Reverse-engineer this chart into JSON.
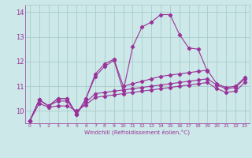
{
  "background_color": "#cce8e8",
  "grid_color": "#aacccc",
  "line_color": "#993399",
  "xlabel": "Windchill (Refroidissement éolien,°C)",
  "ylim": [
    9.5,
    14.3
  ],
  "xlim": [
    -0.5,
    23.5
  ],
  "yticks": [
    10,
    11,
    12,
    13,
    14
  ],
  "xticks": [
    0,
    1,
    2,
    3,
    4,
    5,
    6,
    7,
    8,
    9,
    10,
    11,
    12,
    13,
    14,
    15,
    16,
    17,
    18,
    19,
    20,
    21,
    22,
    23
  ],
  "series1": [
    9.6,
    10.45,
    10.2,
    10.5,
    10.5,
    9.85,
    10.5,
    11.4,
    11.8,
    12.05,
    10.8,
    12.6,
    13.4,
    13.6,
    13.9,
    13.9,
    13.1,
    12.55,
    12.5,
    11.6,
    null,
    null,
    null,
    null
  ],
  "series2": [
    9.6,
    10.45,
    10.2,
    10.5,
    10.5,
    9.85,
    10.5,
    11.5,
    11.9,
    12.1,
    11.0,
    11.1,
    11.2,
    11.3,
    11.4,
    11.45,
    11.5,
    11.55,
    11.6,
    11.65,
    11.1,
    10.95,
    11.0,
    11.35
  ],
  "series3": [
    9.6,
    10.45,
    10.2,
    10.4,
    10.4,
    9.9,
    10.35,
    10.7,
    10.75,
    10.8,
    10.85,
    10.9,
    10.95,
    11.0,
    11.05,
    11.1,
    11.15,
    11.2,
    11.25,
    11.3,
    11.05,
    10.9,
    10.95,
    11.3
  ],
  "series4": [
    9.6,
    10.3,
    10.15,
    10.2,
    10.2,
    10.0,
    10.25,
    10.55,
    10.6,
    10.65,
    10.7,
    10.75,
    10.8,
    10.85,
    10.9,
    10.95,
    11.0,
    11.05,
    11.1,
    11.15,
    10.9,
    10.75,
    10.8,
    11.15
  ]
}
